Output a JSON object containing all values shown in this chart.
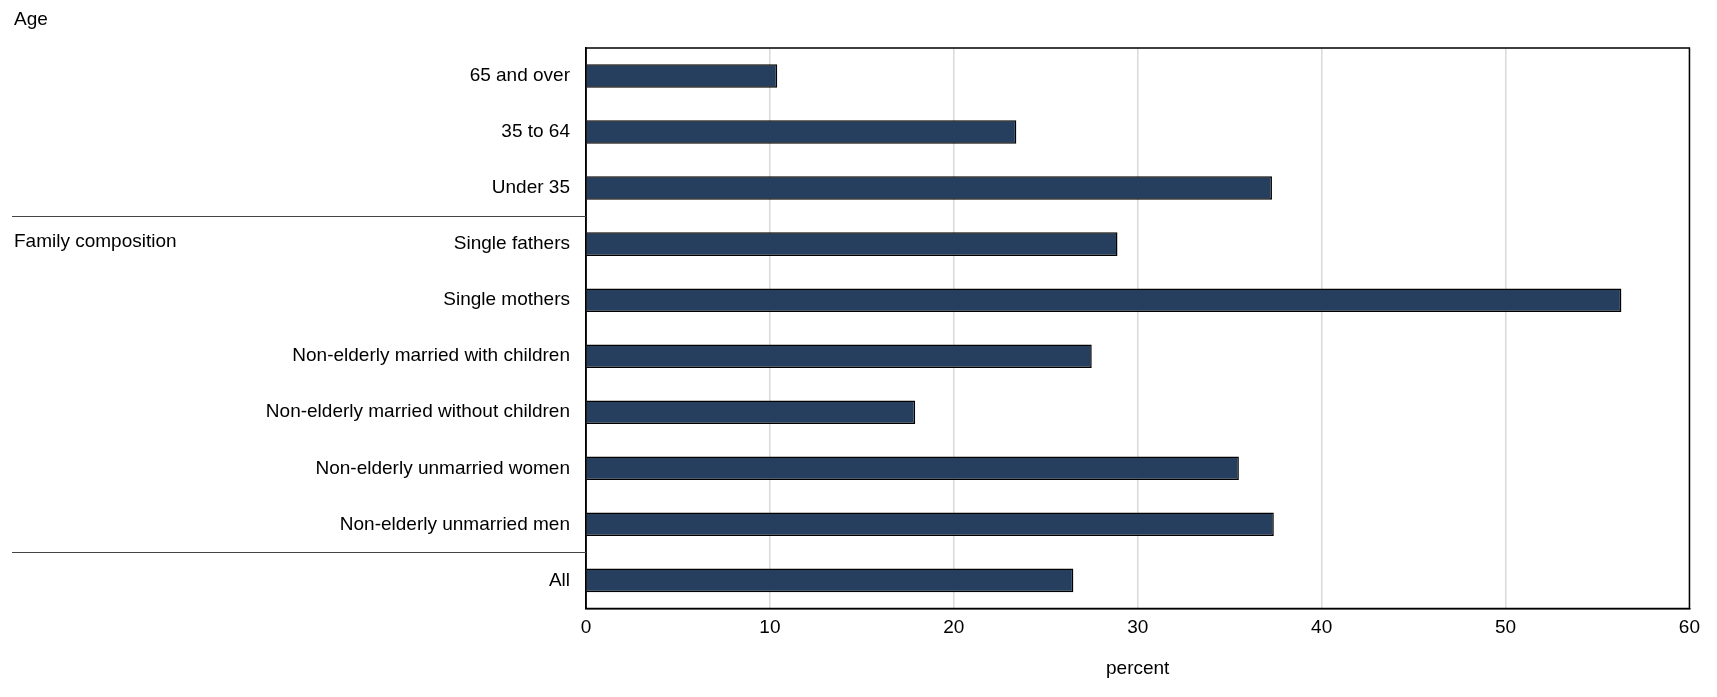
{
  "chart_data": {
    "type": "bar",
    "orientation": "horizontal",
    "xlabel": "percent",
    "categories": [
      "65 and over",
      "35 to 64",
      "Under 35",
      "Single fathers",
      "Single mothers",
      "Non-elderly married with children",
      "Non-elderly married without children",
      "Non-elderly unmarried women",
      "Non-elderly unmarried men",
      "All"
    ],
    "values": [
      10.4,
      23.4,
      37.3,
      28.9,
      56.3,
      27.5,
      17.9,
      35.5,
      37.4,
      26.5
    ],
    "color": "#263f5e",
    "xlim": [
      0,
      60
    ],
    "xticks": [
      0,
      10,
      20,
      30,
      40,
      50,
      60
    ],
    "grid": "x",
    "legend": false,
    "annotations": [
      "Age",
      "Family composition"
    ]
  }
}
